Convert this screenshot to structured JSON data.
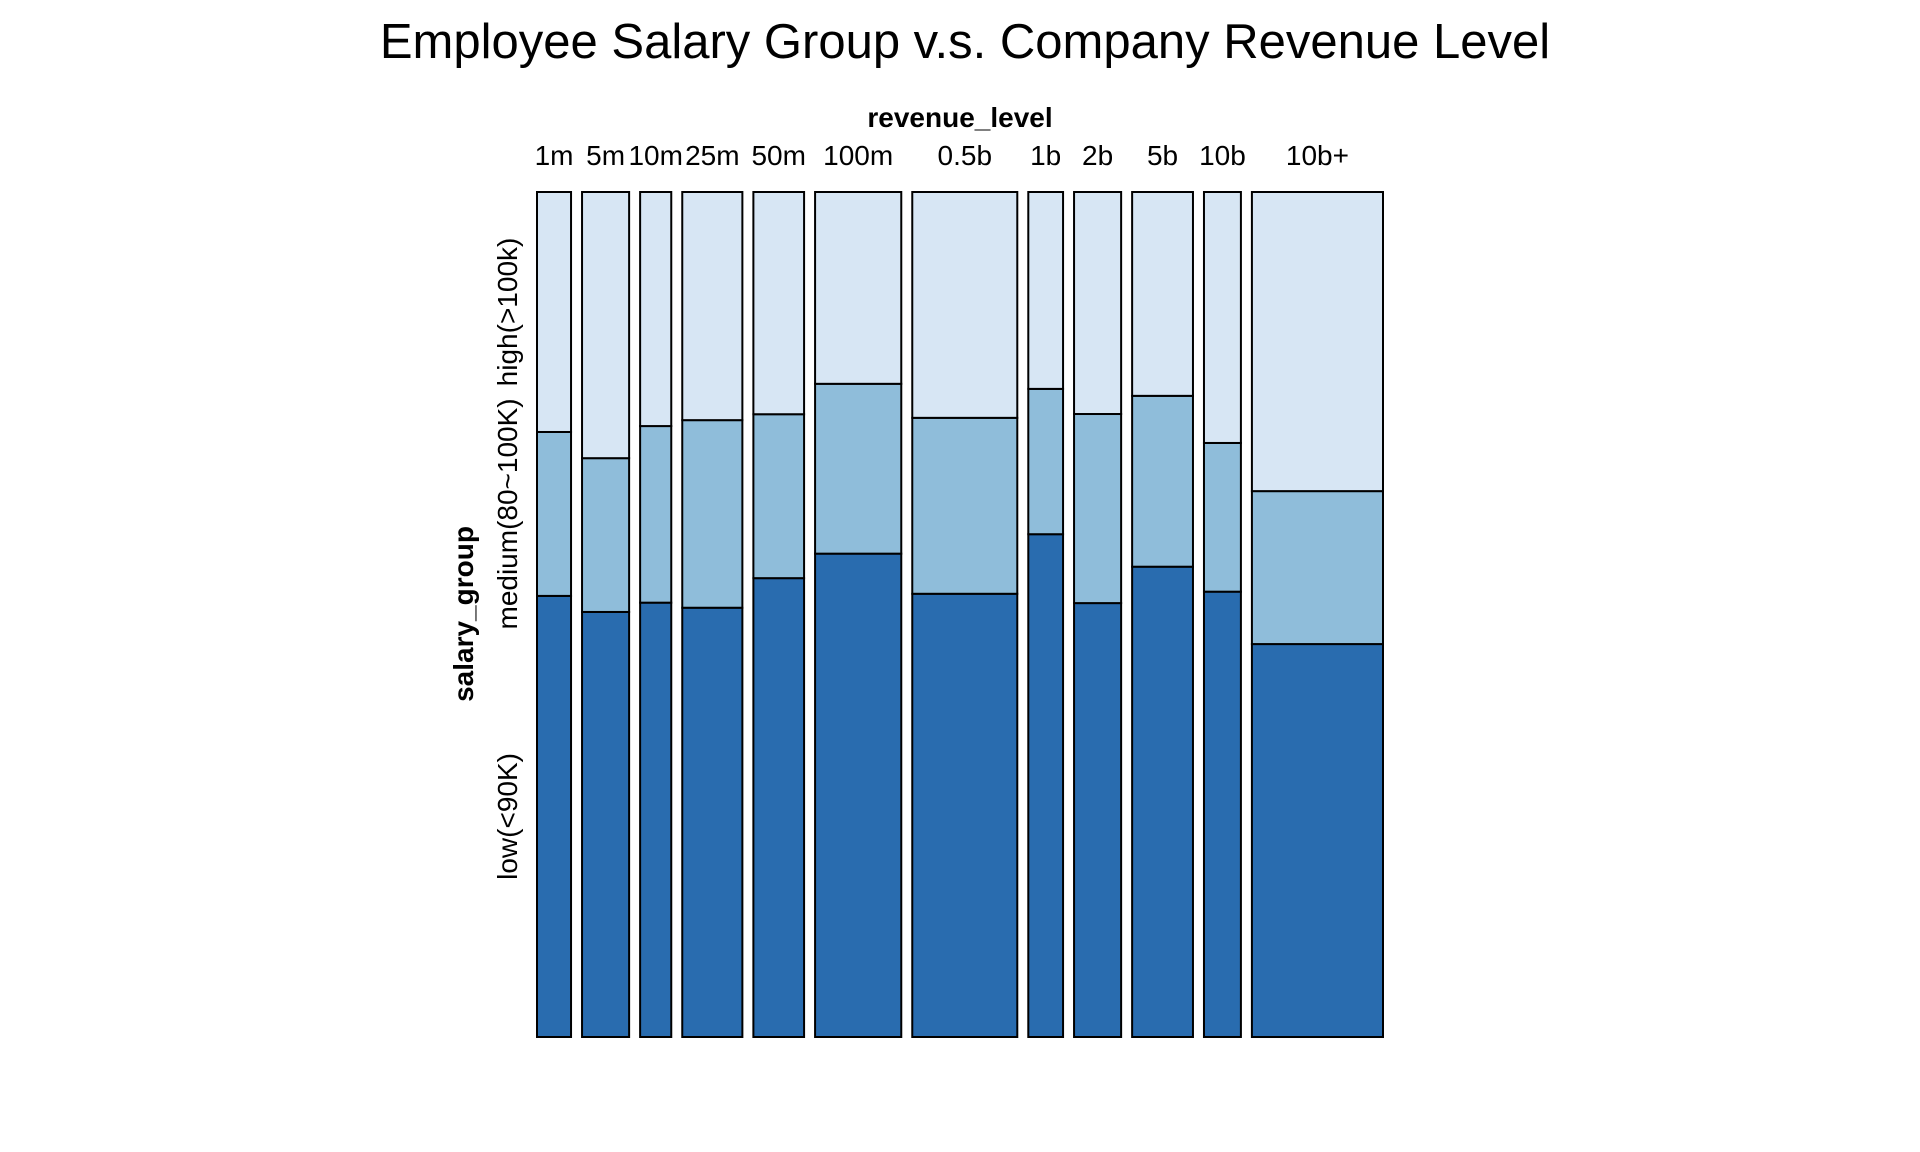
{
  "chart_data": {
    "type": "mosaic",
    "title": "Employee Salary Group v.s. Company Revenue Level",
    "xlabel": "revenue_level",
    "ylabel": "salary_group",
    "categories": [
      "1m",
      "5m",
      "10m",
      "25m",
      "50m",
      "100m",
      "0.5b",
      "1b",
      "2b",
      "5b",
      "10b",
      "10b+"
    ],
    "column_share": [
      0.047,
      0.065,
      0.043,
      0.083,
      0.07,
      0.119,
      0.145,
      0.048,
      0.065,
      0.084,
      0.051,
      0.181
    ],
    "series": [
      {
        "name": "low(<90K)",
        "color": "#296CAF",
        "values": [
          0.522,
          0.503,
          0.514,
          0.508,
          0.543,
          0.572,
          0.524,
          0.595,
          0.514,
          0.556,
          0.527,
          0.465
        ]
      },
      {
        "name": "medium(80~100K)",
        "color": "#8FBDDA",
        "values": [
          0.194,
          0.182,
          0.209,
          0.222,
          0.194,
          0.201,
          0.208,
          0.172,
          0.224,
          0.202,
          0.176,
          0.181
        ]
      },
      {
        "name": "high(>100k)",
        "color": "#D7E6F4",
        "values": [
          0.284,
          0.315,
          0.277,
          0.27,
          0.263,
          0.227,
          0.267,
          0.233,
          0.263,
          0.241,
          0.297,
          0.354
        ]
      }
    ],
    "ylim": [
      0,
      1
    ],
    "grid": false,
    "legend": "none"
  }
}
